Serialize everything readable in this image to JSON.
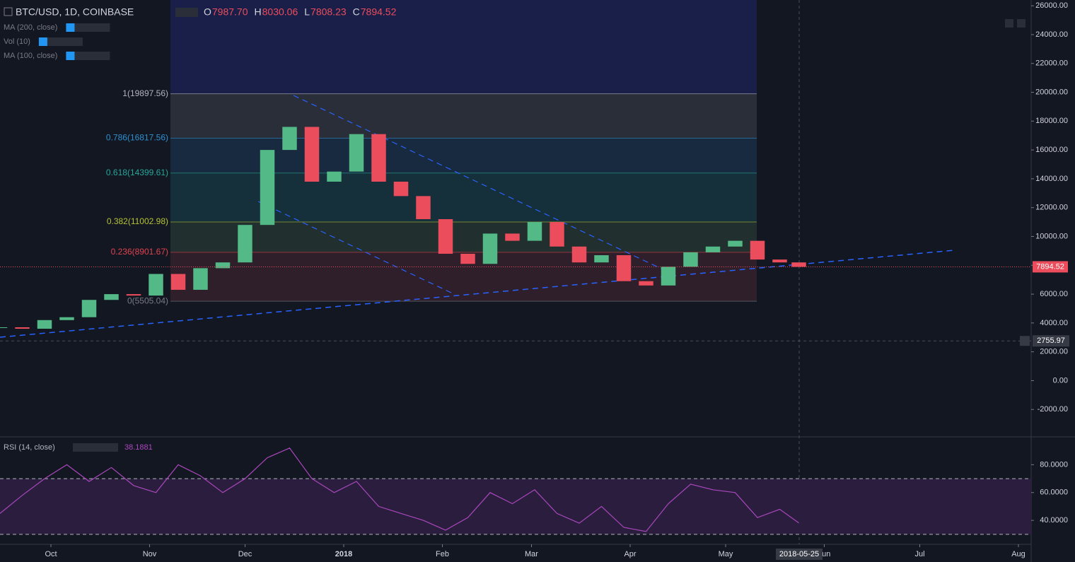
{
  "header": {
    "symbol": "BTC/USD, 1D, COINBASE",
    "ohlc": [
      {
        "label": "O",
        "value": "7987.70"
      },
      {
        "label": "H",
        "value": "8030.06"
      },
      {
        "label": "L",
        "value": "7808.23"
      },
      {
        "label": "C",
        "value": "7894.52"
      }
    ]
  },
  "indicators": [
    "MA (200, close)",
    "Vol (10)",
    "MA (100, close)"
  ],
  "price": {
    "x": [
      "2017-09-15",
      "2017-09-22",
      "2017-09-29",
      "2017-10-06",
      "2017-10-13",
      "2017-10-20",
      "2017-10-27",
      "2017-11-03",
      "2017-11-10",
      "2017-11-17",
      "2017-11-24",
      "2017-12-01",
      "2017-12-08",
      "2017-12-15",
      "2017-12-22",
      "2017-12-29",
      "2018-01-05",
      "2018-01-12",
      "2018-01-19",
      "2018-01-26",
      "2018-02-02",
      "2018-02-09",
      "2018-02-16",
      "2018-02-23",
      "2018-03-02",
      "2018-03-09",
      "2018-03-16",
      "2018-03-23",
      "2018-03-30",
      "2018-04-06",
      "2018-04-13",
      "2018-04-20",
      "2018-04-27",
      "2018-05-04",
      "2018-05-11",
      "2018-05-18",
      "2018-05-24"
    ],
    "close": [
      3700,
      3600,
      4200,
      4400,
      5600,
      6000,
      5900,
      7400,
      6300,
      7800,
      8200,
      10800,
      16000,
      17600,
      13800,
      14500,
      17100,
      13800,
      12800,
      11200,
      8800,
      8100,
      10200,
      9700,
      11000,
      9300,
      8200,
      8700,
      6900,
      6600,
      7900,
      8900,
      9300,
      9700,
      8400,
      8200,
      7894.52
    ],
    "ylim": [
      -3900,
      26400
    ],
    "yticks": [
      {
        "value": 26000,
        "label": "26000.00"
      },
      {
        "value": 24000,
        "label": "24000.00"
      },
      {
        "value": 22000,
        "label": "22000.00"
      },
      {
        "value": 20000,
        "label": "20000.00"
      },
      {
        "value": 18000,
        "label": "18000.00"
      },
      {
        "value": 16000,
        "label": "16000.00"
      },
      {
        "value": 14000,
        "label": "14000.00"
      },
      {
        "value": 12000,
        "label": "12000.00"
      },
      {
        "value": 10000,
        "label": "10000.00"
      },
      {
        "value": 8000,
        "label": "8000.00"
      },
      {
        "value": 6000,
        "label": "6000.00"
      },
      {
        "value": 4000,
        "label": "4000.00"
      },
      {
        "value": 2000,
        "label": "2000.00"
      },
      {
        "value": 0,
        "label": "0.00"
      },
      {
        "value": -2000,
        "label": "-2000.00"
      }
    ],
    "last": {
      "value": 7894.52,
      "label": "7894.52"
    },
    "crosshair": {
      "value": 2755.97,
      "label": "2755.97"
    }
  },
  "fib": [
    {
      "label": "1(19897.56)",
      "value": 19897.56,
      "color": "#b2b5be",
      "fill": "#2a2e39"
    },
    {
      "label": "0.786(16817.56)",
      "value": 16817.56,
      "color": "#2e8fd0",
      "fill": "#182a3f"
    },
    {
      "label": "0.618(14399.61)",
      "value": 14399.61,
      "color": "#26a69a",
      "fill": "#15303a"
    },
    {
      "label": "0.382(11002.98)",
      "value": 11002.98,
      "color": "#b6c234",
      "fill": "#212f2e"
    },
    {
      "label": "0.236(8901.67)",
      "value": 8901.67,
      "color": "#e0434f",
      "fill": "#2e1f2a"
    },
    {
      "label": "0(5505.04)",
      "value": 5505.04,
      "color": "#787b86",
      "fill": "#2e1f2a"
    }
  ],
  "rsi": {
    "name": "RSI (14, close)",
    "value_label": "38.1881",
    "values": [
      45,
      58,
      70,
      80,
      68,
      78,
      65,
      60,
      80,
      72,
      60,
      70,
      85,
      92,
      70,
      60,
      68,
      50,
      45,
      40,
      33,
      42,
      60,
      52,
      62,
      45,
      38,
      50,
      35,
      32,
      52,
      66,
      62,
      60,
      42,
      48,
      38.1881
    ],
    "ylim": [
      22.8,
      100
    ],
    "yticks": [
      {
        "value": 80,
        "label": "80.0000"
      },
      {
        "value": 60,
        "label": "60.0000"
      },
      {
        "value": 40,
        "label": "40.0000"
      }
    ],
    "bands": [
      30,
      70
    ]
  },
  "time": {
    "xlim": [
      "2017-09-15",
      "2018-08-05"
    ],
    "xticks": [
      {
        "value": "2017-10-01",
        "label": "Oct"
      },
      {
        "value": "2017-11-01",
        "label": "Nov"
      },
      {
        "value": "2017-12-01",
        "label": "Dec"
      },
      {
        "value": "2018-01-01",
        "label": "2018"
      },
      {
        "value": "2018-02-01",
        "label": "Feb"
      },
      {
        "value": "2018-03-01",
        "label": "Mar"
      },
      {
        "value": "2018-04-01",
        "label": "Apr"
      },
      {
        "value": "2018-05-01",
        "label": "May"
      },
      {
        "value": "2018-06-01",
        "label": "Jun"
      },
      {
        "value": "2018-07-01",
        "label": "Jul"
      },
      {
        "value": "2018-08-01",
        "label": "Aug"
      }
    ],
    "crosshair": "2018-05-25"
  }
}
